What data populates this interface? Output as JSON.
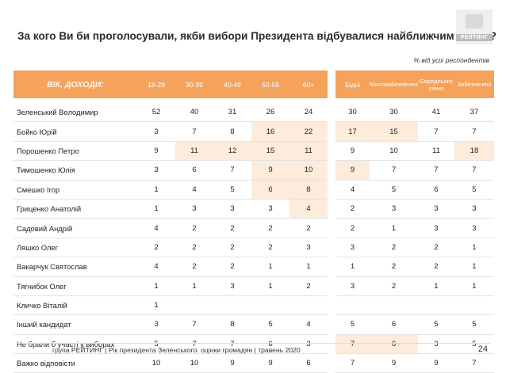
{
  "title": "За кого Ви би проголосували, якби вибори Президента відбувалися найближчим часом?",
  "logo_text": "РЕЙТИНГ",
  "note": "% від усіх респондентів",
  "corner_label": "ВІК, ДОХОДИ:",
  "age_headers": [
    "18-29",
    "30-39",
    "40-49",
    "50-59",
    "60+"
  ],
  "income_headers": [
    "Бідні",
    "Малозабезпечені",
    "Середнього рівня",
    "Забезпечені"
  ],
  "rows": [
    {
      "name": "Зеленський Володимир",
      "values": [
        "52",
        "40",
        "31",
        "26",
        "24",
        "30",
        "30",
        "41",
        "37"
      ],
      "hl": [
        0,
        0,
        0,
        0,
        0,
        0,
        0,
        0,
        0
      ]
    },
    {
      "name": "Бойко Юрій",
      "values": [
        "3",
        "7",
        "8",
        "16",
        "22",
        "17",
        "15",
        "7",
        "7"
      ],
      "hl": [
        0,
        0,
        0,
        1,
        1,
        1,
        1,
        0,
        0
      ]
    },
    {
      "name": "Порошенко Петро",
      "values": [
        "9",
        "11",
        "12",
        "15",
        "11",
        "9",
        "10",
        "11",
        "18"
      ],
      "hl": [
        0,
        1,
        1,
        1,
        1,
        0,
        0,
        0,
        1
      ]
    },
    {
      "name": "Тимошенко Юлія",
      "values": [
        "3",
        "6",
        "7",
        "9",
        "10",
        "9",
        "7",
        "7",
        "7"
      ],
      "hl": [
        0,
        0,
        0,
        1,
        1,
        1,
        0,
        0,
        0
      ]
    },
    {
      "name": "Смешко Ігор",
      "values": [
        "1",
        "4",
        "5",
        "6",
        "8",
        "4",
        "5",
        "6",
        "5"
      ],
      "hl": [
        0,
        0,
        0,
        1,
        1,
        0,
        0,
        0,
        0
      ]
    },
    {
      "name": "Гриценко Анатолій",
      "values": [
        "1",
        "3",
        "3",
        "3",
        "4",
        "2",
        "3",
        "3",
        "3"
      ],
      "hl": [
        0,
        0,
        0,
        0,
        1,
        0,
        0,
        0,
        0
      ]
    },
    {
      "name": "Садовий Андрій",
      "values": [
        "4",
        "2",
        "2",
        "2",
        "2",
        "2",
        "1",
        "3",
        "3"
      ],
      "hl": [
        0,
        0,
        0,
        0,
        0,
        0,
        0,
        0,
        0
      ]
    },
    {
      "name": "Ляшко Олег",
      "values": [
        "2",
        "2",
        "2",
        "2",
        "3",
        "3",
        "2",
        "2",
        "1"
      ],
      "hl": [
        0,
        0,
        0,
        0,
        0,
        0,
        0,
        0,
        0
      ]
    },
    {
      "name": "Вакарчук Святослав",
      "values": [
        "4",
        "2",
        "2",
        "1",
        "1",
        "1",
        "2",
        "2",
        "1"
      ],
      "hl": [
        0,
        0,
        0,
        0,
        0,
        0,
        0,
        0,
        0
      ]
    },
    {
      "name": "Тягнибок Олег",
      "values": [
        "1",
        "1",
        "3",
        "1",
        "2",
        "3",
        "2",
        "1",
        "1"
      ],
      "hl": [
        0,
        0,
        0,
        0,
        0,
        0,
        0,
        0,
        0
      ]
    },
    {
      "name": "Кличко Віталій",
      "values": [
        "1",
        "",
        "",
        "",
        "",
        "",
        "",
        "",
        ""
      ],
      "hl": [
        0,
        0,
        0,
        0,
        0,
        0,
        0,
        0,
        0
      ]
    },
    {
      "name": "Інший кандидат",
      "values": [
        "3",
        "7",
        "8",
        "5",
        "4",
        "5",
        "6",
        "5",
        "5"
      ],
      "hl": [
        0,
        0,
        0,
        0,
        0,
        0,
        0,
        0,
        0
      ]
    },
    {
      "name": "Не брали б участі у виборах",
      "values": [
        "5",
        "7",
        "7",
        "6",
        "3",
        "7",
        "6",
        "3",
        "5"
      ],
      "hl": [
        0,
        0,
        0,
        0,
        0,
        1,
        1,
        0,
        0
      ]
    },
    {
      "name": "Важко відповісти",
      "values": [
        "10",
        "10",
        "9",
        "9",
        "6",
        "7",
        "9",
        "9",
        "7"
      ],
      "hl": [
        0,
        0,
        0,
        0,
        0,
        0,
        0,
        0,
        0
      ]
    }
  ],
  "footer": "група РЕЙТИНГ | Рік президента Зеленського: оцінки громадян | травень 2020",
  "page_number": "24"
}
